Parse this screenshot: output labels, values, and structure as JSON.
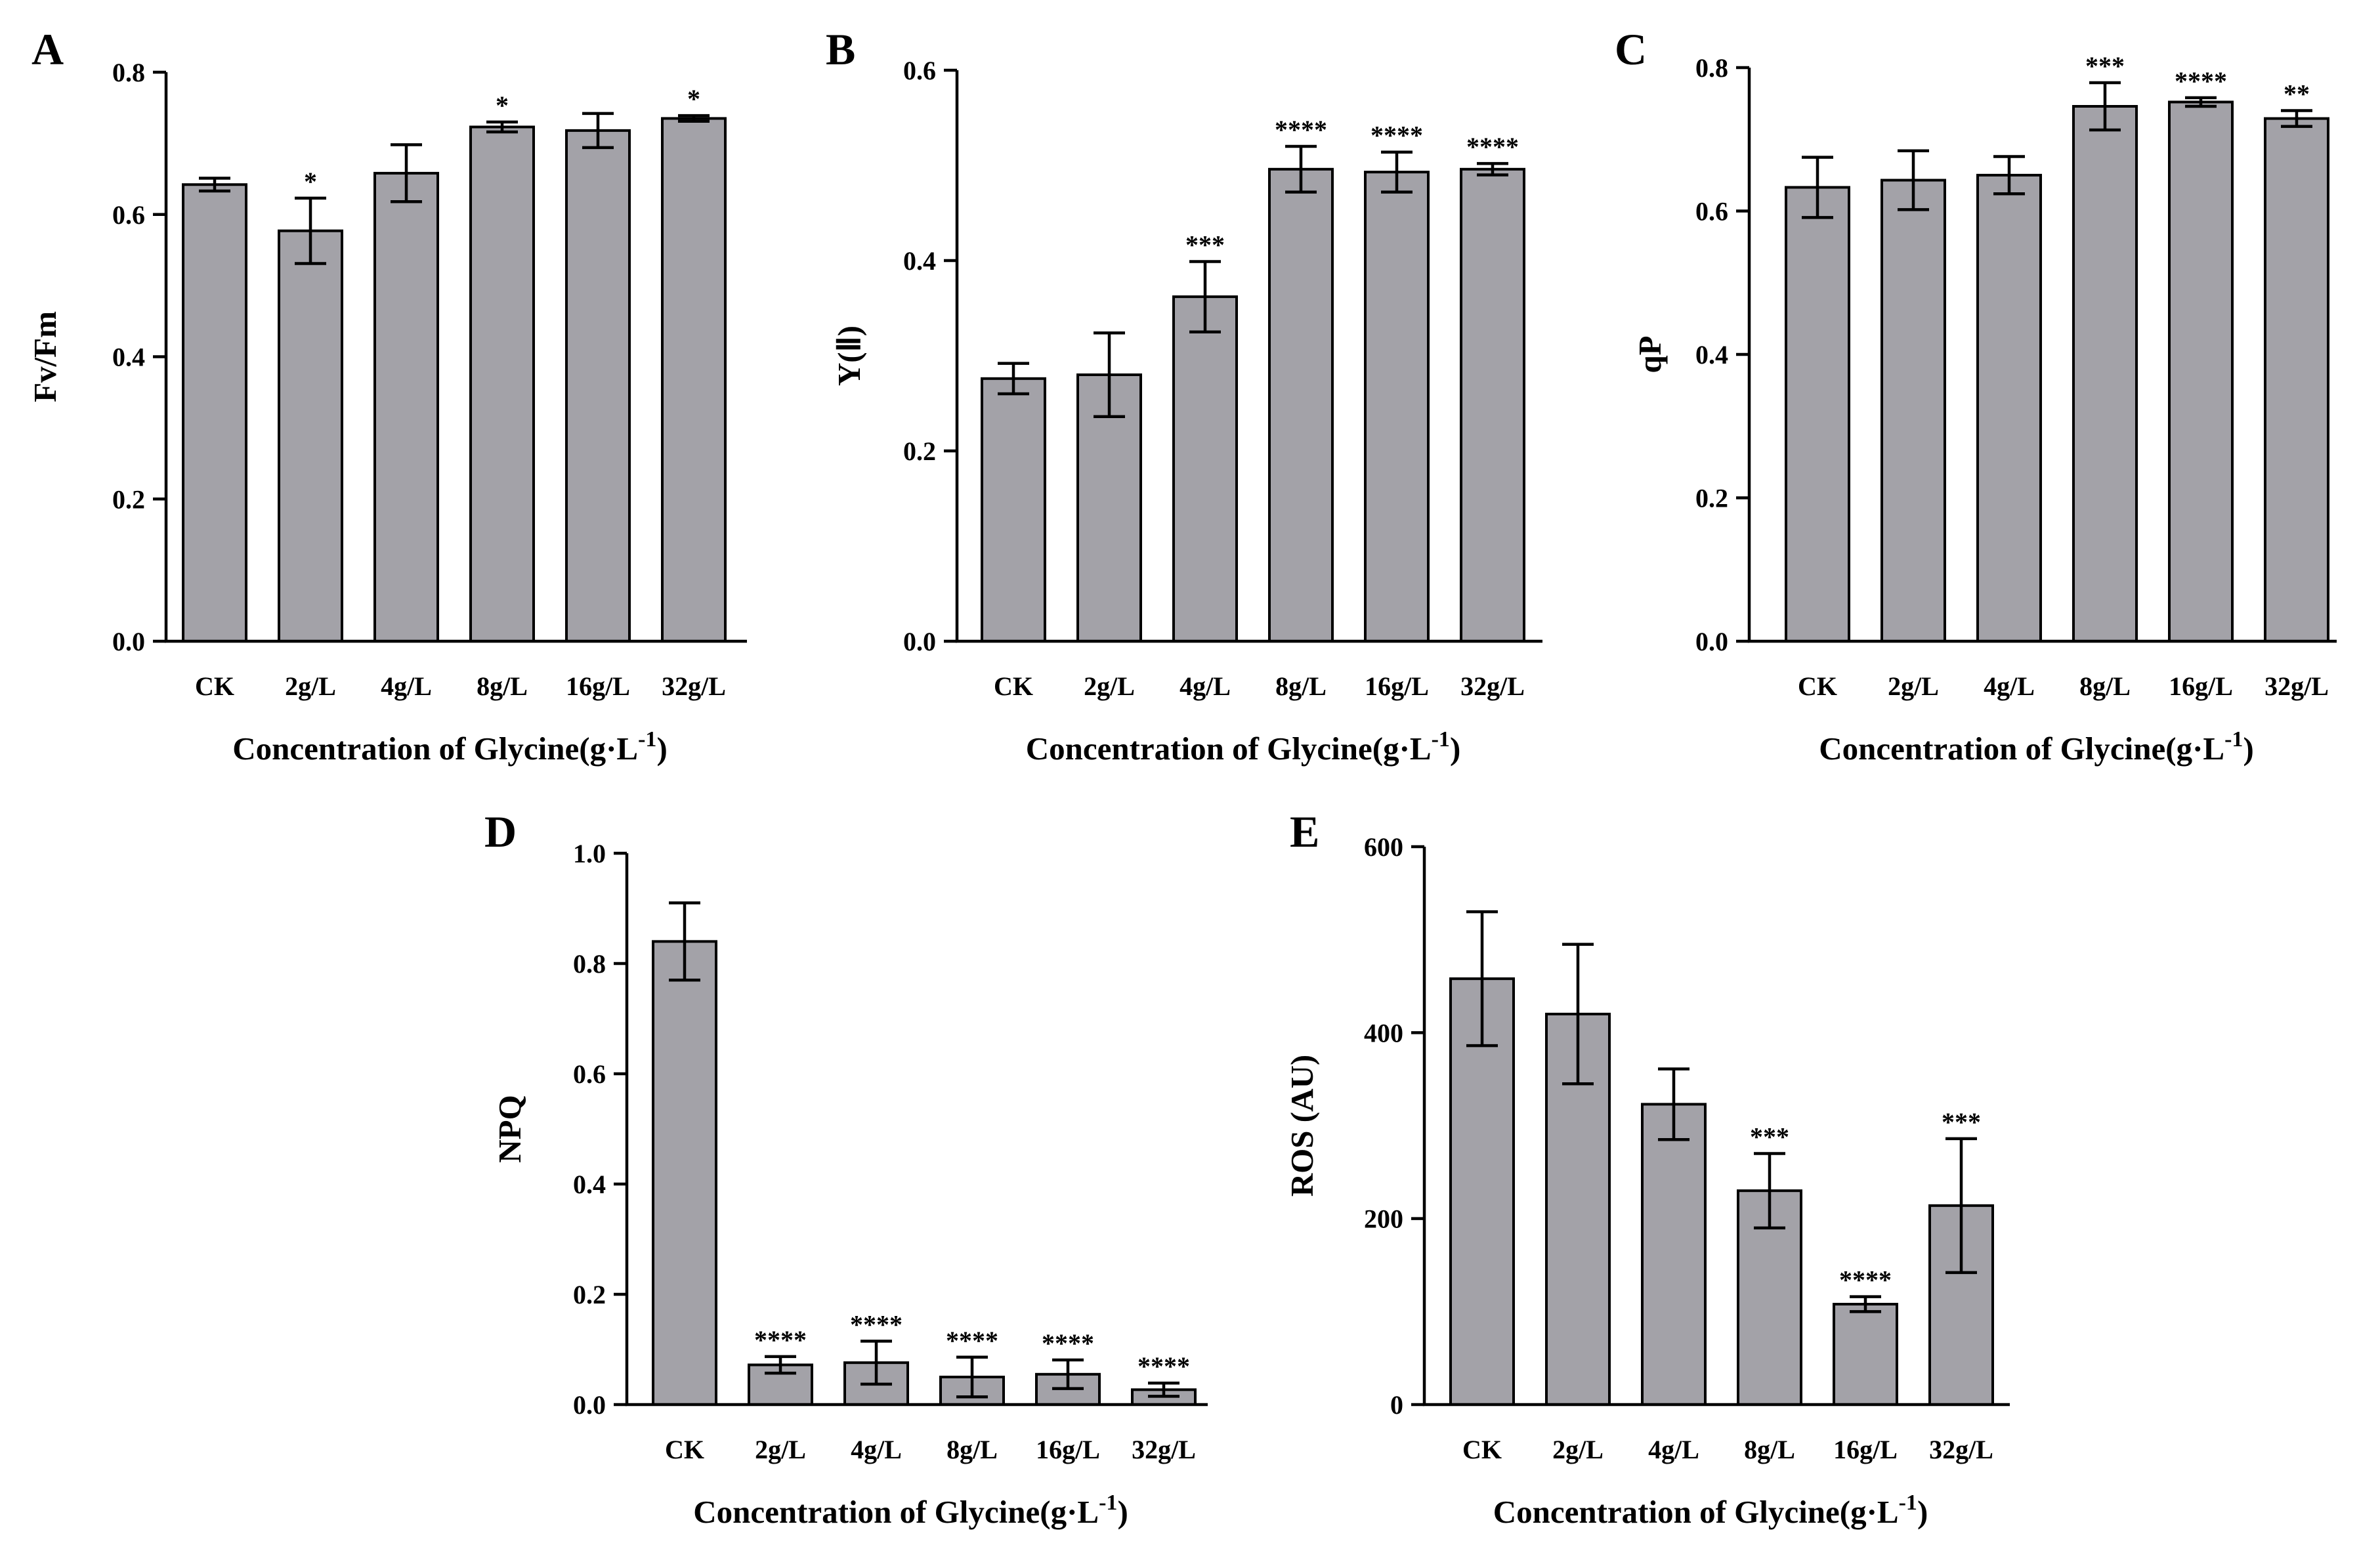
{
  "figure": {
    "bar_fill": "#a3a2a8",
    "axis_color": "#000000"
  },
  "chart_data": [
    {
      "panel": "A",
      "type": "bar",
      "categories": [
        "CK",
        "2g/L",
        "4g/L",
        "8g/L",
        "16g/L",
        "32g/L"
      ],
      "values": [
        0.642,
        0.577,
        0.658,
        0.723,
        0.718,
        0.735
      ],
      "errors": [
        0.009,
        0.046,
        0.04,
        0.007,
        0.024,
        0.004
      ],
      "significance": [
        "",
        "*",
        "",
        "*",
        "",
        "*"
      ],
      "ylabel": "Fv/Fm",
      "xlabel": "Concentration of Glycine(g·L",
      "xlabel_sup": "-1",
      "xlabel_end": ")",
      "ylim": [
        0,
        0.8
      ],
      "yticks": [
        0.0,
        0.2,
        0.4,
        0.6,
        0.8
      ],
      "ytick_labels": [
        "0.0",
        "0.2",
        "0.4",
        "0.6",
        "0.8"
      ]
    },
    {
      "panel": "B",
      "type": "bar",
      "categories": [
        "CK",
        "2g/L",
        "4g/L",
        "8g/L",
        "16g/L",
        "32g/L"
      ],
      "values": [
        0.276,
        0.28,
        0.362,
        0.496,
        0.493,
        0.496
      ],
      "errors": [
        0.016,
        0.044,
        0.037,
        0.024,
        0.021,
        0.006
      ],
      "significance": [
        "",
        "",
        "***",
        "****",
        "****",
        "****"
      ],
      "ylabel": "Y(Ⅱ)",
      "xlabel": "Concentration of Glycine(g·L",
      "xlabel_sup": "-1",
      "xlabel_end": ")",
      "ylim": [
        0,
        0.6
      ],
      "yticks": [
        0.0,
        0.2,
        0.4,
        0.6
      ],
      "ytick_labels": [
        "0.0",
        "0.2",
        "0.4",
        "0.6"
      ]
    },
    {
      "panel": "C",
      "type": "bar",
      "categories": [
        "CK",
        "2g/L",
        "4g/L",
        "8g/L",
        "16g/L",
        "32g/L"
      ],
      "values": [
        0.633,
        0.643,
        0.65,
        0.746,
        0.752,
        0.729
      ],
      "errors": [
        0.042,
        0.041,
        0.026,
        0.033,
        0.006,
        0.011
      ],
      "significance": [
        "",
        "",
        "",
        "***",
        "****",
        "**"
      ],
      "ylabel": "qP",
      "xlabel": "Concentration of Glycine(g·L",
      "xlabel_sup": "-1",
      "xlabel_end": ")",
      "ylim": [
        0,
        0.8
      ],
      "yticks": [
        0.0,
        0.2,
        0.4,
        0.6,
        0.8
      ],
      "ytick_labels": [
        "0.0",
        "0.2",
        "0.4",
        "0.6",
        "0.8"
      ]
    },
    {
      "panel": "D",
      "type": "bar",
      "categories": [
        "CK",
        "2g/L",
        "4g/L",
        "8g/L",
        "16g/L",
        "32g/L"
      ],
      "values": [
        0.84,
        0.072,
        0.076,
        0.05,
        0.055,
        0.027
      ],
      "errors": [
        0.07,
        0.015,
        0.039,
        0.036,
        0.026,
        0.012
      ],
      "significance": [
        "",
        "****",
        "****",
        "****",
        "****",
        "****"
      ],
      "ylabel": "NPQ",
      "xlabel": "Concentration of Glycine(g·L",
      "xlabel_sup": "-1",
      "xlabel_end": ")",
      "ylim": [
        0,
        1.0
      ],
      "yticks": [
        0.0,
        0.2,
        0.4,
        0.6,
        0.8,
        1.0
      ],
      "ytick_labels": [
        "0.0",
        "0.2",
        "0.4",
        "0.6",
        "0.8",
        "1.0"
      ]
    },
    {
      "panel": "E",
      "type": "bar",
      "categories": [
        "CK",
        "2g/L",
        "4g/L",
        "8g/L",
        "16g/L",
        "32g/L"
      ],
      "values": [
        458,
        420,
        323,
        230,
        108,
        214
      ],
      "errors": [
        72,
        75,
        38,
        40,
        8,
        72
      ],
      "significance": [
        "",
        "",
        "",
        "***",
        "****",
        "***"
      ],
      "ylabel": "ROS (AU)",
      "xlabel": "Concentration of Glycine(g·L",
      "xlabel_sup": "-1",
      "xlabel_end": ")",
      "ylim": [
        0,
        600
      ],
      "yticks": [
        0,
        200,
        400,
        600
      ],
      "ytick_labels": [
        "0",
        "200",
        "400",
        "600"
      ]
    }
  ]
}
